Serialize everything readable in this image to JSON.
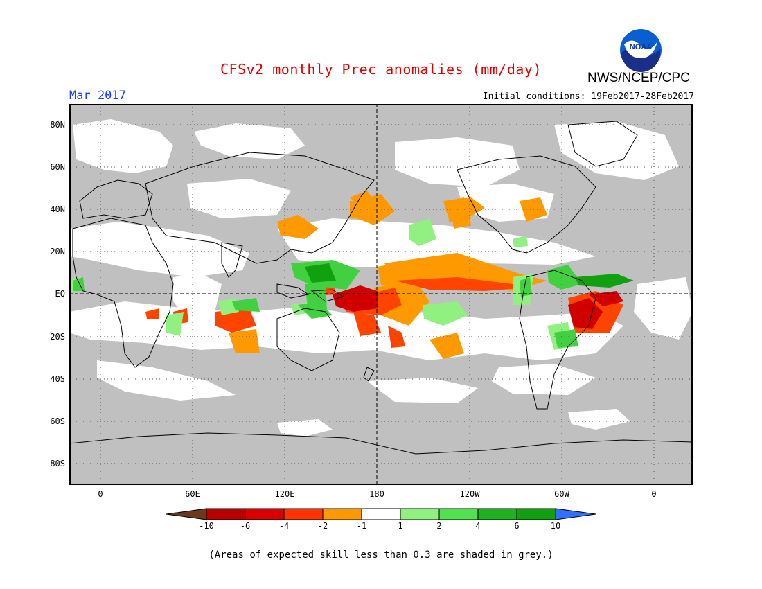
{
  "title": "CFSv2 monthly Prec anomalies (mm/day)",
  "agency": "NWS/NCEP/CPC",
  "logo_text": "NOAA",
  "logo_icon": "noaa-logo-icon",
  "forecast_month": "Mar 2017",
  "initial_conditions": "Initial conditions: 19Feb2017-28Feb2017",
  "lat_labels": [
    "80N",
    "60N",
    "40N",
    "20N",
    "EQ",
    "20S",
    "40S",
    "60S",
    "80S"
  ],
  "lon_labels": [
    "0",
    "60E",
    "120E",
    "180",
    "120W",
    "60W",
    "0"
  ],
  "colorbar": {
    "labels": [
      "-10",
      "-6",
      "-4",
      "-2",
      "-1",
      "1",
      "2",
      "4",
      "6",
      "10"
    ],
    "colors": [
      "#6b3a1e",
      "#b80000",
      "#d80000",
      "#ff3300",
      "#ff9900",
      "#ffffff",
      "#90f080",
      "#50e050",
      "#20b020",
      "#10a010",
      "#3070ff"
    ]
  },
  "colors": {
    "ocean_grey": "#c0c0c0",
    "dry_strong": "#d00000",
    "dry": "#ff4400",
    "dry_light": "#ff9900",
    "wet_light": "#90f080",
    "wet": "#40d040",
    "wet_strong": "#10a010",
    "title_red": "#e00000",
    "month_blue": "#1e3cff"
  },
  "note": "(Areas of expected skill less than 0.3 are shaded in grey.)"
}
